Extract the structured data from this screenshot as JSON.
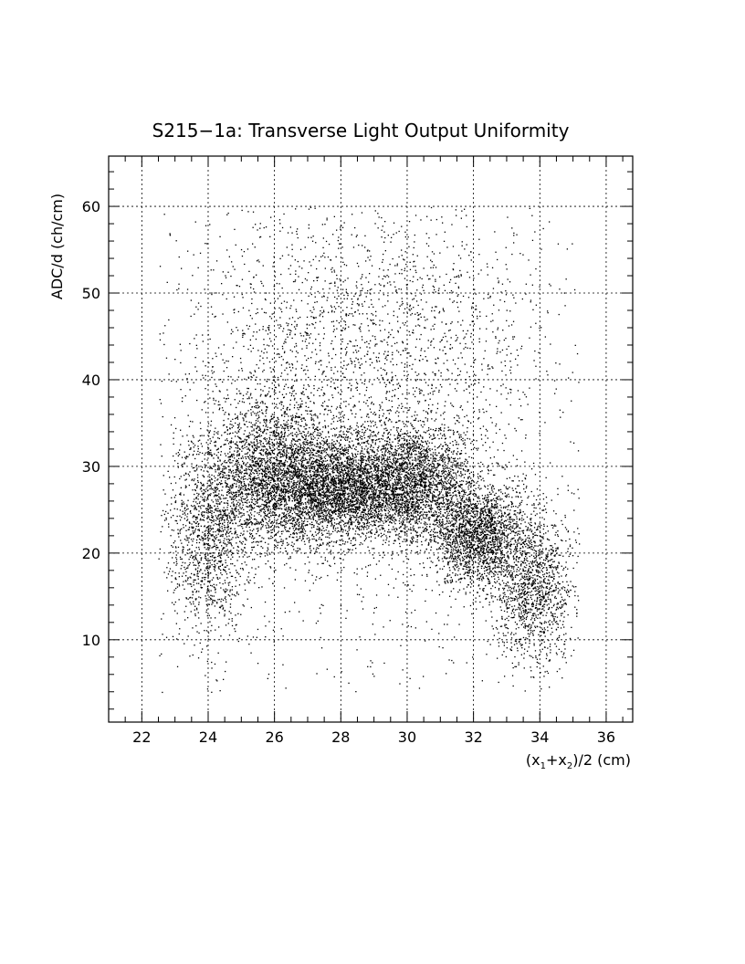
{
  "chart_data": {
    "type": "scatter",
    "title": "S215−1a: Transverse Light Output Uniformity",
    "xlabel": {
      "prefix": "(x",
      "sub1": "1",
      "plus": "+x",
      "sub2": "2",
      "suffix": ")/2 (cm)"
    },
    "ylabel": "ADC/d (ch/cm)",
    "xlim": [
      21,
      36.8
    ],
    "ylim": [
      0.5,
      65.8
    ],
    "x_ticks": [
      22,
      24,
      26,
      28,
      30,
      32,
      34,
      36
    ],
    "x_tick_labels": [
      "22",
      "24",
      "26",
      "28",
      "30",
      "32",
      "34",
      "36"
    ],
    "y_ticks": [
      10,
      20,
      30,
      40,
      50,
      60
    ],
    "y_tick_labels": [
      "10",
      "20",
      "30",
      "40",
      "50",
      "60"
    ],
    "grid": true,
    "marker_color": "#000000",
    "density_profile": {
      "description_free_points": "approximate density of points (x in cm, y in ch/cm)",
      "core": [
        {
          "x": 26.0,
          "y": 29.0,
          "sx": 1.0,
          "sy": 4.5,
          "weight": 0.17
        },
        {
          "x": 28.0,
          "y": 27.5,
          "sx": 1.1,
          "sy": 3.0,
          "weight": 0.19
        },
        {
          "x": 30.2,
          "y": 28.0,
          "sx": 1.0,
          "sy": 3.5,
          "weight": 0.17
        },
        {
          "x": 32.2,
          "y": 22.0,
          "sx": 0.7,
          "sy": 3.0,
          "weight": 0.12
        },
        {
          "x": 24.0,
          "y": 22.0,
          "sx": 0.6,
          "sy": 5.5,
          "weight": 0.08
        },
        {
          "x": 33.8,
          "y": 16.0,
          "sx": 0.6,
          "sy": 4.5,
          "weight": 0.08
        },
        {
          "x": 28.5,
          "y": 45.0,
          "sx": 3.0,
          "sy": 9.0,
          "weight": 0.12
        },
        {
          "x": 29.0,
          "y": 28.0,
          "sx": 4.0,
          "sy": 15.0,
          "weight": 0.07
        }
      ],
      "x_range": [
        22.5,
        35.2
      ],
      "y_range": [
        4,
        60
      ]
    }
  }
}
